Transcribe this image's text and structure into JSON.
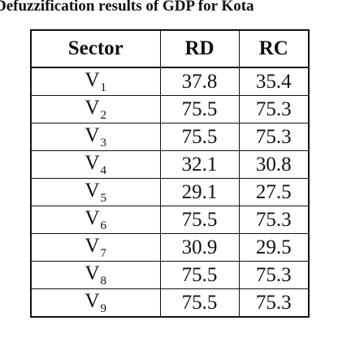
{
  "caption": "Defuzzification results of GDP for Kota",
  "table": {
    "headers": [
      "Sector",
      "RD",
      "RC"
    ],
    "rows": [
      {
        "sector_letter": "V",
        "sector_sub": "1",
        "rd": "37.8",
        "rc": "35.4"
      },
      {
        "sector_letter": "V",
        "sector_sub": "2",
        "rd": "75.5",
        "rc": "75.3"
      },
      {
        "sector_letter": "V",
        "sector_sub": "3",
        "rd": "75.5",
        "rc": "75.3"
      },
      {
        "sector_letter": "V",
        "sector_sub": "4",
        "rd": "32.1",
        "rc": "30.8"
      },
      {
        "sector_letter": "V",
        "sector_sub": "5",
        "rd": "29.1",
        "rc": "27.5"
      },
      {
        "sector_letter": "V",
        "sector_sub": "6",
        "rd": "75.5",
        "rc": "75.3"
      },
      {
        "sector_letter": "V",
        "sector_sub": "7",
        "rd": "30.9",
        "rc": "29.5"
      },
      {
        "sector_letter": "V",
        "sector_sub": "8",
        "rd": "75.5",
        "rc": "75.3"
      },
      {
        "sector_letter": "V",
        "sector_sub": "9",
        "rd": "75.5",
        "rc": "75.3"
      }
    ]
  }
}
